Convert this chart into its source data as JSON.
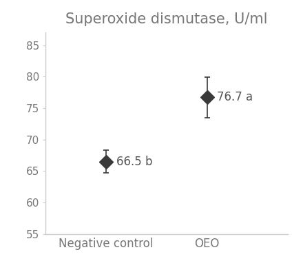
{
  "title": "Superoxide dismutase, U/ml",
  "categories": [
    "Negative control",
    "OEO"
  ],
  "values": [
    66.5,
    76.7
  ],
  "errors": [
    1.8,
    3.2
  ],
  "labels": [
    "66.5 b",
    "76.7 a"
  ],
  "ylim": [
    55,
    87
  ],
  "yticks": [
    55,
    60,
    65,
    70,
    75,
    80,
    85
  ],
  "marker_color": "#3a3a3a",
  "marker_size": 10,
  "title_fontsize": 15,
  "tick_fontsize": 11,
  "label_fontsize": 12,
  "xtick_fontsize": 12,
  "background_color": "#ffffff",
  "axis_color": "#cccccc",
  "text_color": "#777777",
  "label_text_color": "#555555"
}
